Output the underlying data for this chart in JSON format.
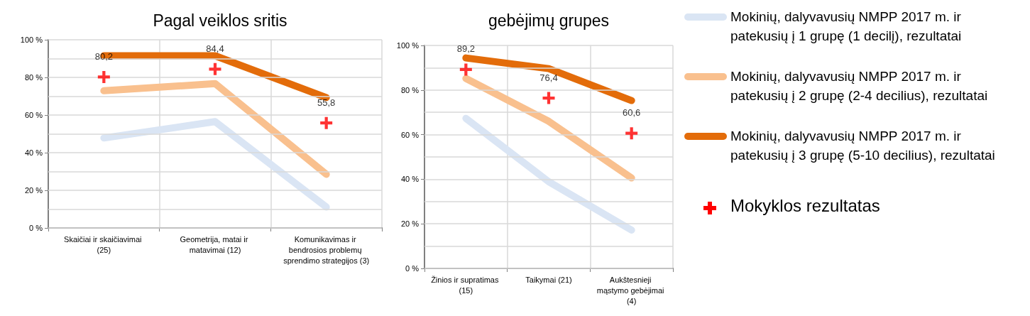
{
  "chart_data": [
    {
      "type": "line",
      "title": "Pagal veiklos sritis",
      "categories": [
        "Skaičiai ir skaičiavimai (25)",
        "Geometrija, matai ir matavimai (12)",
        "Komunikavimas ir bendrosios problemų sprendimo strategijos (3)"
      ],
      "ylim": [
        0,
        100
      ],
      "yticks": [
        {
          "value": 0,
          "label": "0 %"
        },
        {
          "value": 10,
          "label": null
        },
        {
          "value": 20,
          "label": "20 %"
        },
        {
          "value": 30,
          "label": null
        },
        {
          "value": 40,
          "label": "40 %"
        },
        {
          "value": 50,
          "label": null
        },
        {
          "value": 60,
          "label": "60 %"
        },
        {
          "value": 70,
          "label": null
        },
        {
          "value": 80,
          "label": "80 %"
        },
        {
          "value": 90,
          "label": null
        },
        {
          "value": 100,
          "label": "100 %"
        }
      ],
      "grid": true,
      "legend": false,
      "marker": "none",
      "series": [
        {
          "color": "#dae5f4",
          "values": [
            47.8,
            56.5,
            11.1
          ]
        },
        {
          "color": "#f9c08e",
          "values": [
            72.9,
            76.7,
            28.5
          ]
        },
        {
          "color": "#e36c0a",
          "values": [
            91.5,
            91.5,
            69.3
          ]
        },
        {
          "type": "scatter",
          "marker": "cross",
          "color": "#ff0000",
          "values": [
            80.2,
            84.4,
            55.8
          ],
          "value_labels": [
            "80,2",
            "84,4",
            "55,8"
          ]
        }
      ]
    },
    {
      "type": "line",
      "title": "gebėjimų grupes",
      "categories": [
        "Žinios ir supratimas (15)",
        "Taikymai (21)",
        "Aukštesnieji mąstymo gebėjimai (4)"
      ],
      "ylim": [
        0,
        100
      ],
      "yticks": [
        {
          "value": 0,
          "label": "0 %"
        },
        {
          "value": 10,
          "label": null
        },
        {
          "value": 20,
          "label": "20 %"
        },
        {
          "value": 30,
          "label": null
        },
        {
          "value": 40,
          "label": "40 %"
        },
        {
          "value": 50,
          "label": null
        },
        {
          "value": 60,
          "label": "60 %"
        },
        {
          "value": 70,
          "label": null
        },
        {
          "value": 80,
          "label": "80 %"
        },
        {
          "value": 90,
          "label": null
        },
        {
          "value": 100,
          "label": "100 %"
        }
      ],
      "grid": true,
      "legend": "right",
      "marker": "none",
      "series": [
        {
          "name": "Mokinių, dalyvavusių NMPP 2017 m. ir patekusių į 1 grupę (1 decilį), rezultatai",
          "color": "#dae5f4",
          "values": [
            67.3,
            38.9,
            17.2
          ]
        },
        {
          "name": "Mokinių, dalyvavusių NMPP 2017 m. ir patekusių į 2 grupę (2-4 decilius), rezultatai",
          "color": "#f9c08e",
          "values": [
            85.2,
            66.0,
            40.6
          ]
        },
        {
          "name": "Mokinių, dalyvavusių NMPP 2017 m. ir patekusių į 3 grupę (5-10 decilius), rezultatai",
          "color": "#e36c0a",
          "values": [
            94.4,
            89.6,
            75.3
          ]
        },
        {
          "name": "Mokyklos rezultatas",
          "type": "scatter",
          "marker": "cross",
          "color": "#ff0000",
          "values": [
            89.2,
            76.4,
            60.6
          ],
          "value_labels": [
            "89,2",
            "76,4",
            "60,6"
          ]
        }
      ]
    }
  ]
}
